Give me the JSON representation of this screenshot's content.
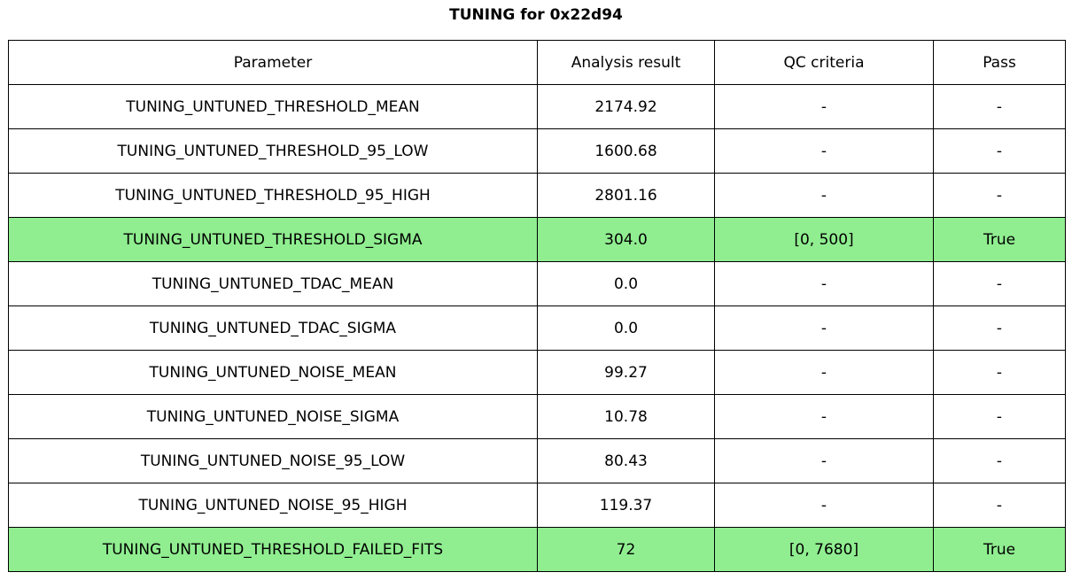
{
  "title": "TUNING for 0x22d94",
  "chart_data": {
    "type": "table",
    "title": "TUNING for 0x22d94",
    "columns": [
      "Parameter",
      "Analysis result",
      "QC criteria",
      "Pass"
    ],
    "rows": [
      {
        "parameter": "TUNING_UNTUNED_THRESHOLD_MEAN",
        "analysis_result": "2174.92",
        "qc_criteria": "-",
        "pass": "-",
        "highlight": false
      },
      {
        "parameter": "TUNING_UNTUNED_THRESHOLD_95_LOW",
        "analysis_result": "1600.68",
        "qc_criteria": "-",
        "pass": "-",
        "highlight": false
      },
      {
        "parameter": "TUNING_UNTUNED_THRESHOLD_95_HIGH",
        "analysis_result": "2801.16",
        "qc_criteria": "-",
        "pass": "-",
        "highlight": false
      },
      {
        "parameter": "TUNING_UNTUNED_THRESHOLD_SIGMA",
        "analysis_result": "304.0",
        "qc_criteria": "[0, 500]",
        "pass": "True",
        "highlight": true
      },
      {
        "parameter": "TUNING_UNTUNED_TDAC_MEAN",
        "analysis_result": "0.0",
        "qc_criteria": "-",
        "pass": "-",
        "highlight": false
      },
      {
        "parameter": "TUNING_UNTUNED_TDAC_SIGMA",
        "analysis_result": "0.0",
        "qc_criteria": "-",
        "pass": "-",
        "highlight": false
      },
      {
        "parameter": "TUNING_UNTUNED_NOISE_MEAN",
        "analysis_result": "99.27",
        "qc_criteria": "-",
        "pass": "-",
        "highlight": false
      },
      {
        "parameter": "TUNING_UNTUNED_NOISE_SIGMA",
        "analysis_result": "10.78",
        "qc_criteria": "-",
        "pass": "-",
        "highlight": false
      },
      {
        "parameter": "TUNING_UNTUNED_NOISE_95_LOW",
        "analysis_result": "80.43",
        "qc_criteria": "-",
        "pass": "-",
        "highlight": false
      },
      {
        "parameter": "TUNING_UNTUNED_NOISE_95_HIGH",
        "analysis_result": "119.37",
        "qc_criteria": "-",
        "pass": "-",
        "highlight": false
      },
      {
        "parameter": "TUNING_UNTUNED_THRESHOLD_FAILED_FITS",
        "analysis_result": "72",
        "qc_criteria": "[0, 7680]",
        "pass": "True",
        "highlight": true
      }
    ]
  },
  "colors": {
    "highlight": "#90EE90",
    "border": "#000000",
    "background": "#FFFFFF",
    "text": "#000000"
  }
}
